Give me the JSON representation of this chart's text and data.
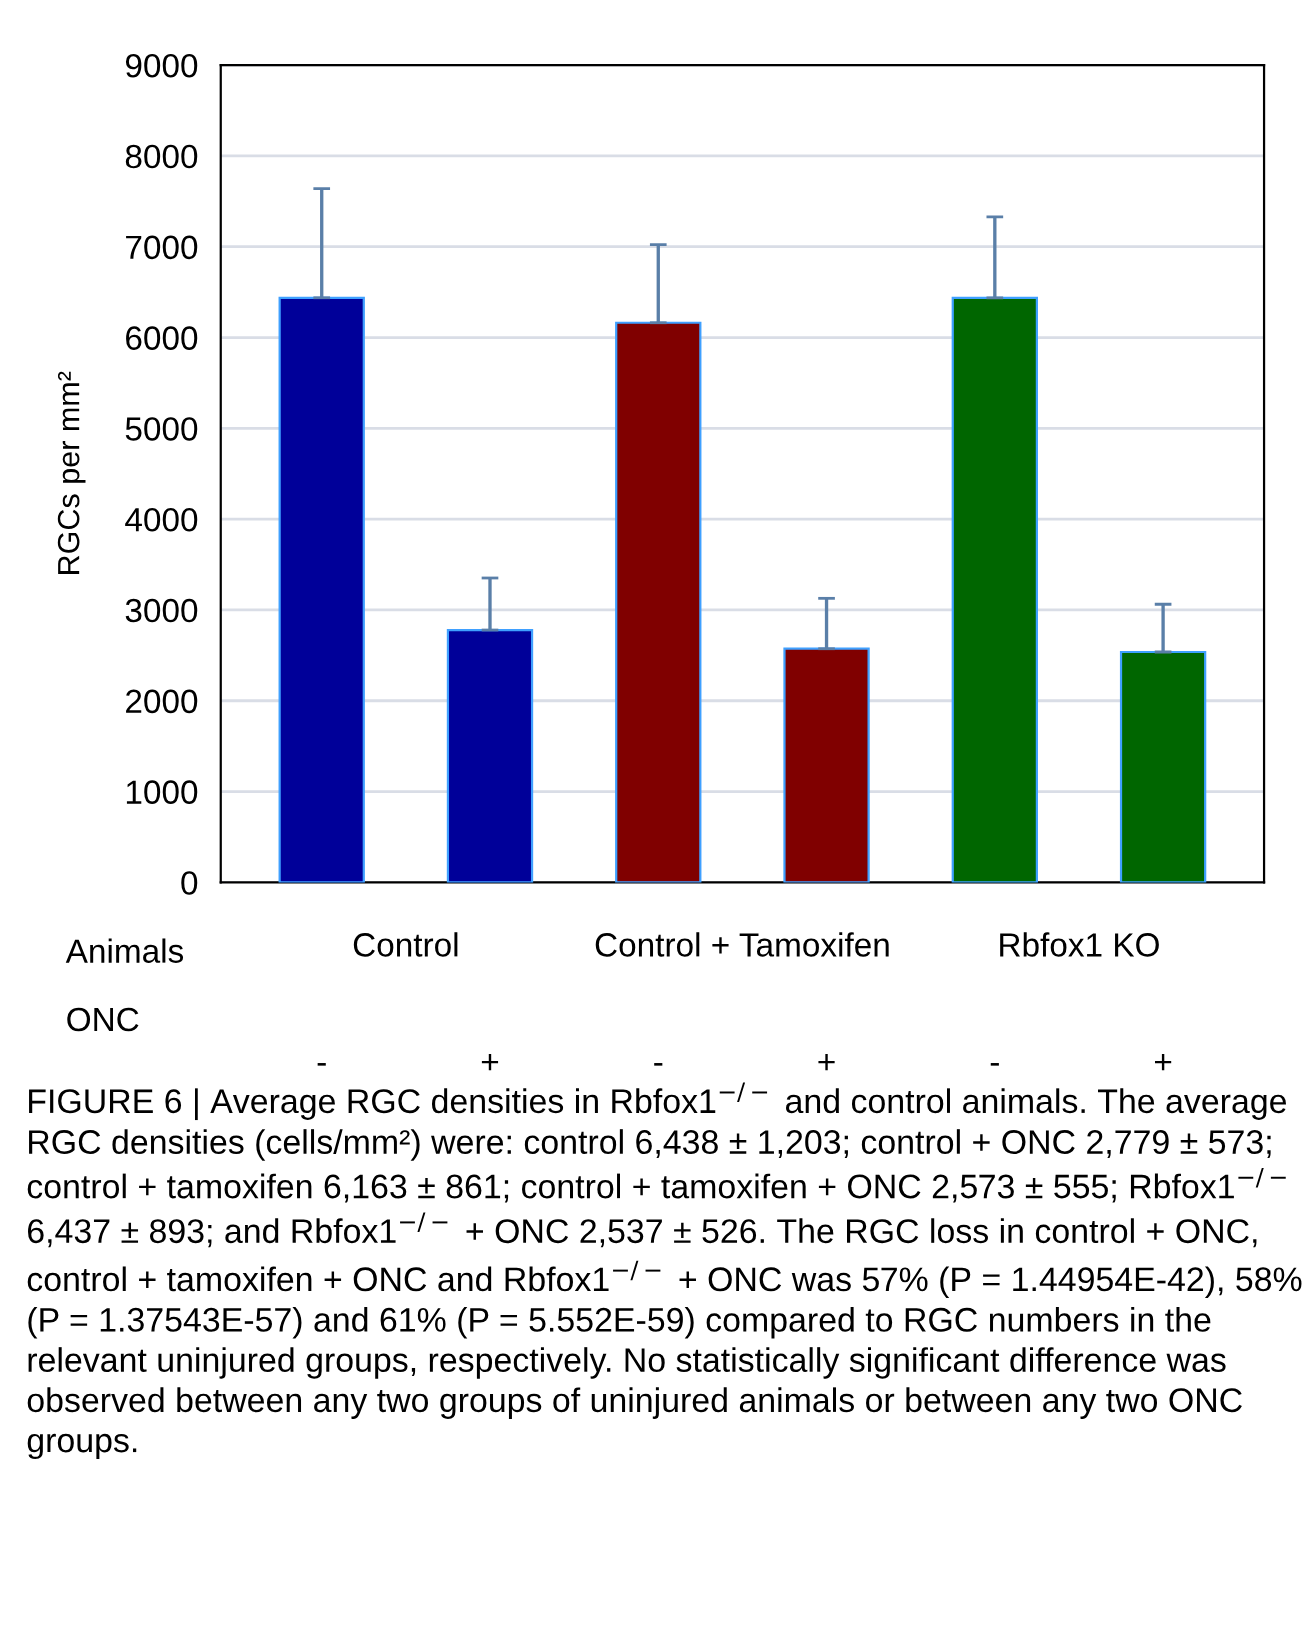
{
  "chart_data": {
    "type": "bar",
    "ylabel": "RGCs per mm²",
    "categories": [
      "-",
      "+",
      "-",
      "+",
      "-",
      "+"
    ],
    "values": [
      6438,
      2779,
      6163,
      2573,
      6437,
      2537
    ],
    "colors": [
      "#000099",
      "#000099",
      "#800000",
      "#800000",
      "#006600",
      "#006600"
    ],
    "errors": [
      [
        6438,
        7641
      ],
      [
        2779,
        3352
      ],
      [
        6163,
        7024
      ],
      [
        2573,
        3128
      ],
      [
        6437,
        7330
      ],
      [
        2537,
        3063
      ]
    ],
    "ylim": [
      0,
      9000
    ],
    "yticks": [
      0,
      1000,
      2000,
      3000,
      4000,
      5000,
      6000,
      7000,
      8000,
      9000
    ],
    "grid": "y",
    "annotations": [
      "Animals",
      "Control",
      "Control + Tamoxifen",
      "Rbfox1 KO",
      "ONC",
      "FIGURE 6 | Average RGC densities in Rbfox1$^{−/−}$ and control animals. The average RGC densities (cells/mm²) were: control 6,438 ± 1,203; control + ONC 2,779 ± 573; control + tamoxifen 6,163 ± 861; control + tamoxifen + ONC 2,573 ± 555; Rbfox1$^{−/−}$ 6,437 ± 893; and Rbfox1$^{−/−}$ + ONC 2,537 ± 526. The RGC loss in control + ONC, control + tamoxifen + ONC and Rbfox1$^{−/−}$ + ONC was 57% (P = 1.44954E-42), 58% (P = 1.37543E-57) and 61% (P = 5.552E-59) compared to RGC numbers in the relevant uninjured groups, respectively. No statistically significant difference was observed between any two groups of uninjured animals or between any two ONC groups."
    ]
  }
}
